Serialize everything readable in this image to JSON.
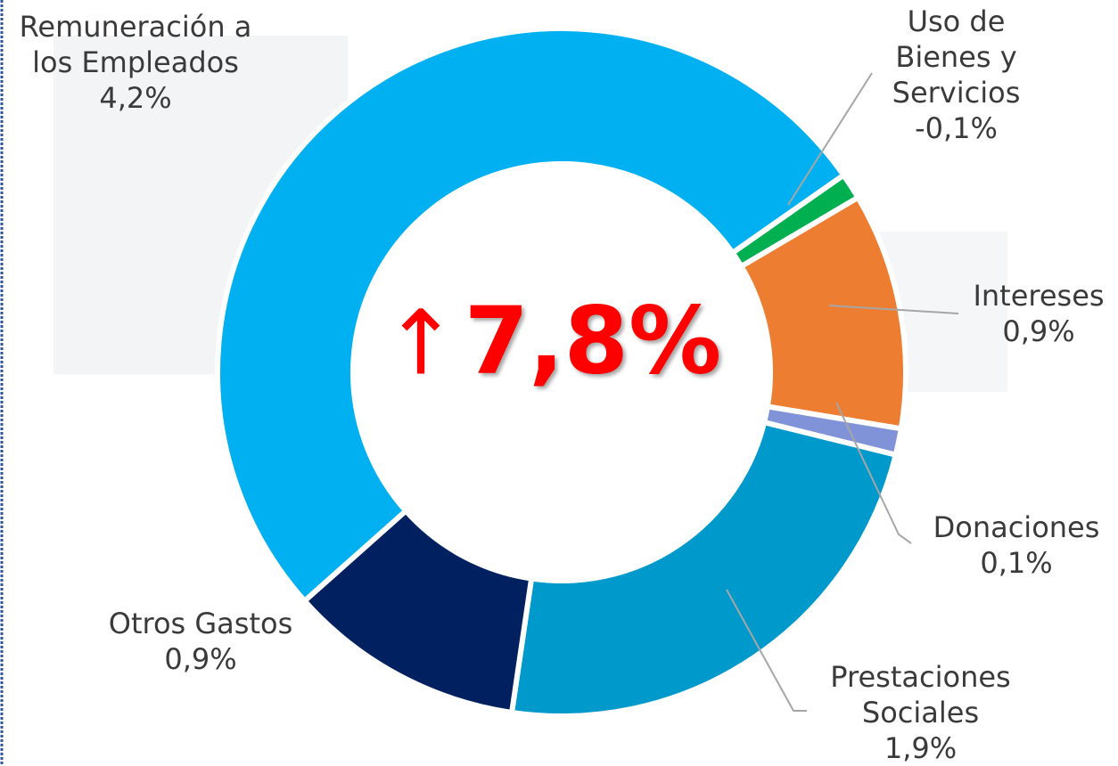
{
  "chart_data": {
    "type": "donut",
    "center_arrow": "↑",
    "center_text": "7,8%",
    "categories": [
      "Uso de Bienes y Servicios",
      "Intereses",
      "Donaciones",
      "Prestaciones Sociales",
      "Otros Gastos",
      "Remuneración a los Empleados"
    ],
    "values": [
      -0.1,
      0.9,
      0.1,
      1.9,
      0.9,
      4.2
    ],
    "value_labels": [
      "-0,1%",
      "0,9%",
      "0,1%",
      "1,9%",
      "0,9%",
      "4,2%"
    ],
    "colors": [
      "#00b050",
      "#ed7d31",
      "#8093d8",
      "#0099cc",
      "#002060",
      "#00b0f0"
    ]
  }
}
